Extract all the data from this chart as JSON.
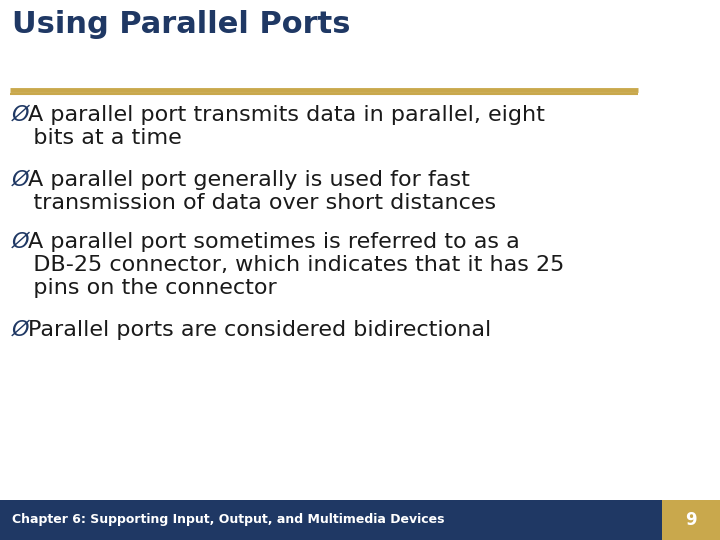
{
  "title": "Using Parallel Ports",
  "title_color": "#1F3864",
  "title_fontsize": 22,
  "separator_color": "#C9A84C",
  "bg_color": "#FFFFFF",
  "bullet_color": "#1a1a1a",
  "bullet_fontsize": 16,
  "bullet_symbol": "Ø",
  "bullet_symbol_color": "#1F3864",
  "bullets": [
    [
      "A parallel port transmits data in parallel, eight",
      "   bits at a time"
    ],
    [
      "A parallel port generally is used for fast",
      "   transmission of data over short distances"
    ],
    [
      "A parallel port sometimes is referred to as a",
      "   DB-25 connector, which indicates that it has 25",
      "   pins on the connector"
    ],
    [
      "Parallel ports are considered bidirectional"
    ]
  ],
  "footer_bg": "#1F3864",
  "footer_right_bg": "#C9A84C",
  "footer_text": "Chapter 6: Supporting Input, Output, and Multimedia Devices",
  "footer_page": "9",
  "footer_fontsize": 9
}
